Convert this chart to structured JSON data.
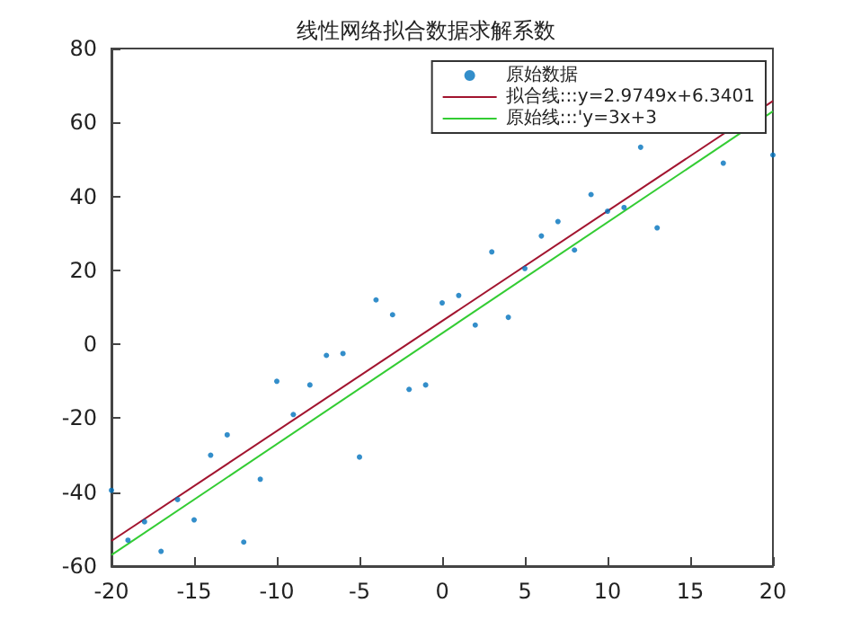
{
  "chart_data": {
    "type": "scatter",
    "title": "线性网络拟合数据求解系数",
    "xlim": [
      -20,
      20
    ],
    "xticks": [
      -20,
      -15,
      -10,
      -5,
      0,
      5,
      10,
      15,
      20
    ],
    "ylim": [
      -60,
      80
    ],
    "yticks": [
      -60,
      -40,
      -20,
      0,
      20,
      40,
      60,
      80
    ],
    "grid": false,
    "legend": "top right",
    "series": [
      {
        "name": "原始数据",
        "marker": "circle",
        "color": "#0072bd",
        "x": [
          -20,
          -19,
          -18,
          -17,
          -16,
          -15,
          -14,
          -13,
          -12,
          -11,
          -10,
          -9,
          -8,
          -7,
          -6,
          -5,
          -4,
          -3,
          -2,
          -1,
          0,
          1,
          2,
          3,
          4,
          5,
          6,
          7,
          8,
          9,
          10,
          11,
          12,
          13,
          17,
          20
        ],
        "values": [
          -39.5,
          -53,
          -48,
          -56,
          -42,
          -47.5,
          -30,
          -24.5,
          -53.5,
          -36.5,
          -10,
          -19,
          -11,
          -3,
          -2.5,
          -30.5,
          12,
          8,
          -12.2,
          -11,
          11.2,
          13.2,
          5.2,
          25,
          7.3,
          20.5,
          29.3,
          33.2,
          25.5,
          40.5,
          36,
          37,
          53.3,
          31.5,
          49,
          51.2
        ]
      },
      {
        "name": "拟合线:::y=2.9749x+6.3401",
        "type": "line",
        "marker": "none",
        "color": "#a2142f",
        "x": [
          -20,
          20
        ],
        "values": [
          -53.2,
          65.8
        ]
      },
      {
        "name": "原始线:::'y=3x+3",
        "type": "line",
        "marker": "none",
        "color": "#33cc33",
        "x": [
          -20,
          20
        ],
        "values": [
          -57,
          63
        ]
      }
    ]
  }
}
